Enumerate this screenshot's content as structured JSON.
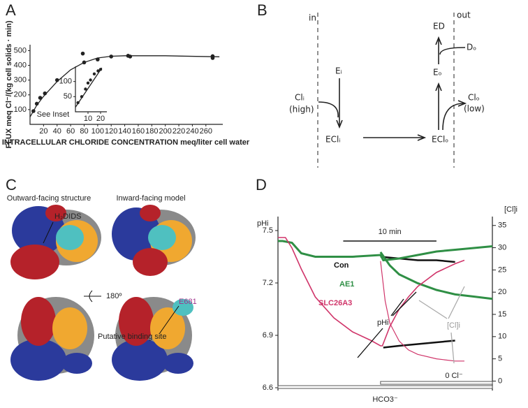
{
  "panels": [
    "A",
    "B",
    "C",
    "D"
  ],
  "chart_data": [
    {
      "type": "scatter",
      "x_label": "INTRACELLULAR CHLORIDE CONCENTRATION meq/liter cell water",
      "y_label": "FLUX meq Cl⁻/(kg cell solids · min)",
      "annotation": "See Inset",
      "xlim": [
        0,
        285
      ],
      "ylim": [
        0,
        540
      ],
      "xticks": [
        20,
        40,
        60,
        80,
        100,
        120,
        140,
        160,
        180,
        200,
        220,
        240,
        260
      ],
      "yticks": [
        100,
        200,
        300,
        400,
        500
      ],
      "series": [
        {
          "color": "#222",
          "x": [
            5,
            10,
            15,
            22,
            40,
            78,
            80,
            100,
            120,
            145,
            148,
            270,
            270
          ],
          "values": [
            90,
            140,
            180,
            210,
            300,
            480,
            420,
            440,
            460,
            465,
            460,
            450,
            462
          ]
        }
      ],
      "fit": {
        "x": [
          0,
          10,
          20,
          40,
          60,
          80,
          100,
          120,
          140,
          200,
          280
        ],
        "values": [
          50,
          130,
          190,
          290,
          370,
          420,
          450,
          462,
          465,
          465,
          458
        ]
      },
      "inset": {
        "xlim": [
          0,
          25
        ],
        "ylim": [
          0,
          150
        ],
        "xticks": [
          10,
          20
        ],
        "yticks": [
          50,
          100
        ],
        "series": [
          {
            "color": "#222",
            "x": [
              2,
              5,
              8,
              10,
              12,
              15,
              18,
              20
            ],
            "values": [
              30,
              50,
              75,
              95,
              105,
              125,
              135,
              140
            ]
          }
        ],
        "fit": {
          "x": [
            0,
            21
          ],
          "values": [
            15,
            145
          ]
        }
      }
    },
    {
      "type": "line",
      "y_label": "pHi",
      "y2_label": "[Cl]i",
      "xlim": [
        0,
        23
      ],
      "ylim": [
        6.6,
        7.58
      ],
      "y2lim": [
        -1.5,
        37
      ],
      "yticks": [
        6.6,
        6.9,
        7.2,
        7.5
      ],
      "y2ticks": [
        0,
        5,
        10,
        15,
        20,
        25,
        30,
        35
      ],
      "scale_bar": {
        "label": "10 min",
        "start": 7,
        "length": 10
      },
      "bars": [
        {
          "label": "0 Cl⁻",
          "start": 11,
          "end": 23
        },
        {
          "label": "HCO3⁻",
          "start": 0,
          "end": 23
        }
      ],
      "annotations": [
        "pHi",
        "[Cl]i"
      ],
      "series": [
        {
          "name": "Con",
          "color": "#111",
          "width": 2.5,
          "x": [
            11,
            13,
            15,
            17,
            19
          ],
          "values": [
            7.35,
            7.34,
            7.33,
            7.33,
            7.32
          ]
        },
        {
          "color": "#111",
          "width": 2.5,
          "x": [
            11.3,
            13,
            15,
            17,
            19
          ],
          "values": [
            6.83,
            6.84,
            6.85,
            6.86,
            6.87
          ]
        },
        {
          "name": "AE1",
          "color": "#2f8f45",
          "width": 3,
          "x": [
            0,
            0.5,
            1.5,
            2.5,
            4,
            8,
            11,
            11.3,
            13,
            15,
            17,
            19,
            21,
            23
          ],
          "values": [
            7.44,
            7.44,
            7.43,
            7.37,
            7.35,
            7.35,
            7.36,
            7.33,
            7.34,
            7.36,
            7.38,
            7.39,
            7.4,
            7.41
          ]
        },
        {
          "color": "#2f8f45",
          "width": 3,
          "axis": "y2",
          "x": [
            11,
            12,
            13,
            15,
            17,
            19,
            21,
            23
          ],
          "values": [
            29,
            26,
            24,
            22,
            20.5,
            19.5,
            19,
            18.5
          ]
        },
        {
          "name": "SLC26A3",
          "color": "#d0356a",
          "width": 1.6,
          "x": [
            0,
            0.8,
            1.5,
            2.5,
            4,
            6,
            8,
            10,
            11,
            11.2,
            12,
            13,
            14,
            15,
            17,
            19,
            20
          ],
          "values": [
            7.46,
            7.46,
            7.4,
            7.28,
            7.12,
            7.0,
            6.92,
            6.87,
            6.84,
            6.84,
            6.95,
            7.05,
            7.12,
            7.18,
            7.26,
            7.31,
            7.33
          ]
        },
        {
          "color": "#d0356a",
          "width": 1.2,
          "axis": "y2",
          "x": [
            11,
            11.5,
            12,
            13,
            14,
            15,
            17,
            19,
            20
          ],
          "values": [
            27,
            18,
            13,
            9,
            7,
            6,
            5,
            4.5,
            4.5
          ]
        }
      ]
    }
  ],
  "diagram": {
    "in": "in",
    "out": "out",
    "Ei": "Eᵢ",
    "Cli": "Clᵢ",
    "high": "(high)",
    "ECli": "EClᵢ",
    "EClo": "EClₒ",
    "Eo": "Eₒ",
    "ED": "ED",
    "Do": "Dₒ",
    "Clo": "Clₒ",
    "low": "(low)"
  },
  "structures": {
    "outward": "Outward-facing structure",
    "inward": "Inward-facing model",
    "ligand": "H₂DIDS",
    "rotation": "180º",
    "residue": "E681",
    "site": "Putative binding site"
  }
}
